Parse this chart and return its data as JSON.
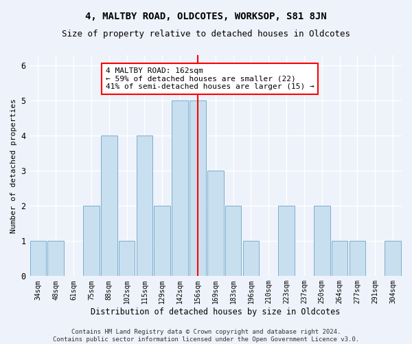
{
  "title": "4, MALTBY ROAD, OLDCOTES, WORKSOP, S81 8JN",
  "subtitle": "Size of property relative to detached houses in Oldcotes",
  "xlabel": "Distribution of detached houses by size in Oldcotes",
  "ylabel": "Number of detached properties",
  "categories": [
    "34sqm",
    "48sqm",
    "61sqm",
    "75sqm",
    "88sqm",
    "102sqm",
    "115sqm",
    "129sqm",
    "142sqm",
    "156sqm",
    "169sqm",
    "183sqm",
    "196sqm",
    "210sqm",
    "223sqm",
    "237sqm",
    "250sqm",
    "264sqm",
    "277sqm",
    "291sqm",
    "304sqm"
  ],
  "values": [
    1,
    1,
    0,
    2,
    4,
    1,
    4,
    2,
    5,
    5,
    3,
    2,
    1,
    0,
    2,
    0,
    2,
    1,
    1,
    0,
    1
  ],
  "bar_color": "#c8dff0",
  "bar_edgecolor": "#7aaecc",
  "vline_index": 9,
  "vline_color": "red",
  "annotation_text": "4 MALTBY ROAD: 162sqm\n← 59% of detached houses are smaller (22)\n41% of semi-detached houses are larger (15) →",
  "annotation_box_color": "white",
  "annotation_box_edgecolor": "red",
  "ylim": [
    0,
    6.3
  ],
  "yticks": [
    0,
    1,
    2,
    3,
    4,
    5,
    6
  ],
  "footer_text": "Contains HM Land Registry data © Crown copyright and database right 2024.\nContains public sector information licensed under the Open Government Licence v3.0.",
  "bg_color": "#eef2fb",
  "grid_color": "#ffffff",
  "title_fontsize": 10,
  "subtitle_fontsize": 9,
  "annotation_fontsize": 8,
  "footer_fontsize": 6.5,
  "ylabel_fontsize": 8,
  "xlabel_fontsize": 8.5
}
